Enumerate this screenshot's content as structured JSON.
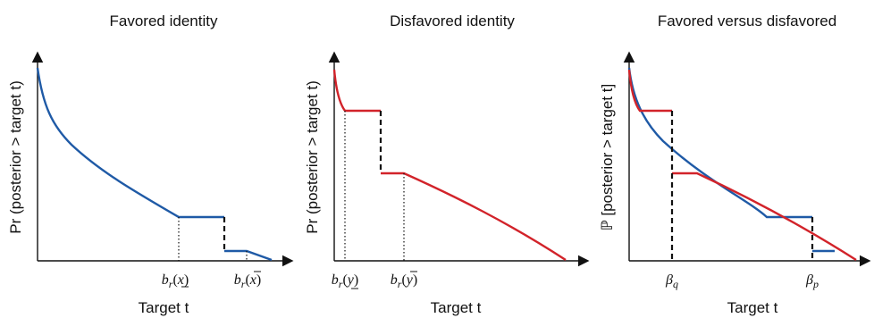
{
  "panels": [
    {
      "title": "Favored identity",
      "xlabel": "Target t",
      "ylabel": "Pr (posterior > target t)",
      "ticks": [
        {
          "base": "b",
          "sub": "r",
          "arg": "x",
          "bar": "under"
        },
        {
          "base": "b",
          "sub": "r",
          "arg": "x",
          "bar": "over"
        }
      ]
    },
    {
      "title": "Disfavored identity",
      "xlabel": "Target t",
      "ylabel": "Pr (posterior > target t)",
      "ticks": [
        {
          "base": "b",
          "sub": "r",
          "arg": "y",
          "bar": "under"
        },
        {
          "base": "b",
          "sub": "r",
          "arg": "y",
          "bar": "over"
        }
      ]
    },
    {
      "title": "Favored versus disfavored",
      "xlabel": "Target t",
      "ylabel": "ℙ [posterior > target t]",
      "ticks": [
        {
          "base": "β",
          "sub": "q"
        },
        {
          "base": "β",
          "sub": "p"
        }
      ]
    }
  ],
  "colors": {
    "favored": "#1f5aa6",
    "disfavored": "#d2232a"
  }
}
